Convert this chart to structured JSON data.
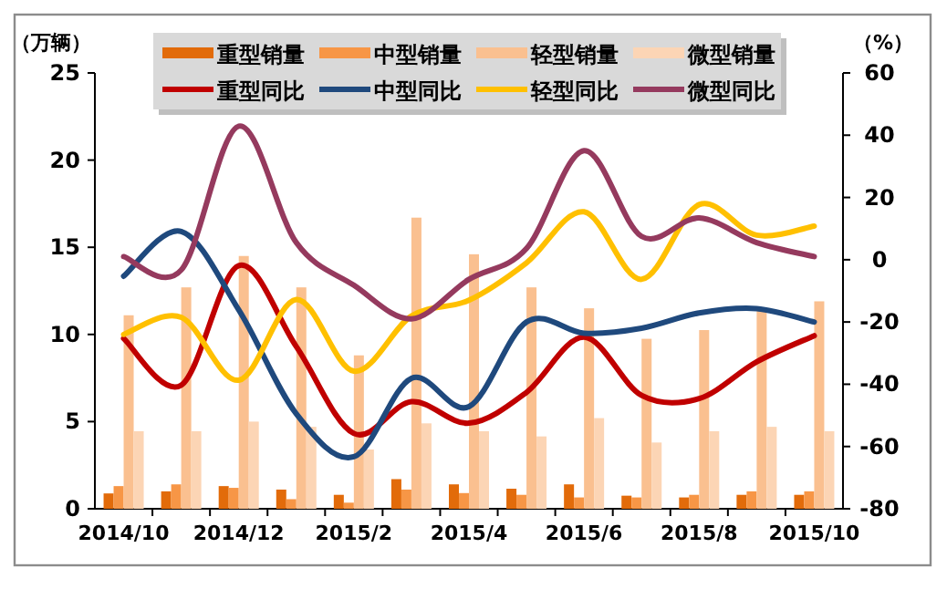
{
  "chart_data": {
    "type": "bar",
    "categories": [
      "2014/10",
      null,
      "2014/12",
      null,
      "2015/2",
      null,
      "2015/4",
      null,
      "2015/6",
      null,
      "2015/8",
      null,
      "2015/10"
    ],
    "ylabel": "（万辆）",
    "y2label": "（%）",
    "ylim": [
      0,
      25
    ],
    "yticks": [
      0,
      5,
      10,
      15,
      20,
      25
    ],
    "y2lim": [
      -80,
      60
    ],
    "y2ticks": [
      -80,
      -60,
      -40,
      -20,
      0,
      20,
      40,
      60
    ],
    "legend": "top",
    "series": [
      {
        "name": "重型销量",
        "color": "#e26b0a",
        "values": [
          0.88,
          1.0,
          1.3,
          1.1,
          0.8,
          1.7,
          1.4,
          1.15,
          1.4,
          0.75,
          0.65,
          0.8,
          0.8
        ]
      },
      {
        "name": "中型销量",
        "color": "#f79646",
        "values": [
          1.3,
          1.4,
          1.2,
          0.55,
          0.35,
          1.1,
          0.9,
          0.8,
          0.65,
          0.65,
          0.8,
          1.0,
          1.0
        ]
      },
      {
        "name": "轻型销量",
        "color": "#fac090",
        "values": [
          11.1,
          12.7,
          14.5,
          12.7,
          8.8,
          16.7,
          14.6,
          12.7,
          11.5,
          9.75,
          10.25,
          11.4,
          11.9
        ]
      },
      {
        "name": "微型销量",
        "color": "#fcd5b5",
        "values": [
          4.45,
          4.45,
          5.0,
          4.7,
          3.4,
          4.9,
          4.45,
          4.15,
          5.2,
          3.8,
          4.45,
          4.7,
          4.45
        ]
      },
      {
        "name": "重型同比",
        "type": "line",
        "axis": "y2",
        "color": "#c00000",
        "values": [
          -25.3,
          -40.3,
          -1.9,
          -27.9,
          -55.8,
          -45.6,
          -52.5,
          -42.6,
          -24.9,
          -43.6,
          -44.6,
          -32.8,
          -24.4
        ]
      },
      {
        "name": "中型同比",
        "type": "line",
        "axis": "y2",
        "color": "#1f497d",
        "values": [
          -5.3,
          9.1,
          -16.1,
          -49.5,
          -63.3,
          -38.1,
          -47.2,
          -20.0,
          -23.6,
          -22.0,
          -17.1,
          -15.7,
          -20.0
        ]
      },
      {
        "name": "轻型同比",
        "type": "line",
        "axis": "y2",
        "color": "#ffc000",
        "values": [
          -24.0,
          -18.5,
          -38.7,
          -12.8,
          -35.8,
          -18.1,
          -13.0,
          -1.0,
          15.4,
          -6.3,
          17.7,
          7.9,
          10.8
        ]
      },
      {
        "name": "微型同比",
        "type": "line",
        "axis": "y2",
        "color": "#953a5e",
        "values": [
          1.0,
          -3.3,
          42.9,
          5.5,
          -8.2,
          -19.0,
          -6.3,
          3.6,
          35.0,
          7.5,
          13.4,
          5.5,
          1.0
        ]
      }
    ]
  }
}
